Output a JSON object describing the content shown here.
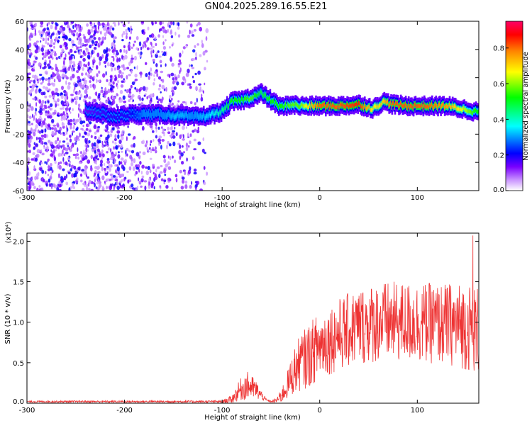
{
  "title": "GN04.2025.289.16.55.E21",
  "chart_data": [
    {
      "type": "heatmap",
      "title": "GN04.2025.289.16.55.E21",
      "xlabel": "Height of straight line (km)",
      "ylabel": "Frequency (Hz)",
      "xlim": [
        -300,
        163
      ],
      "ylim": [
        -60,
        60
      ],
      "xticks": [
        -300,
        -200,
        -100,
        0,
        100
      ],
      "yticks": [
        -60,
        -40,
        -20,
        0,
        20,
        40,
        60
      ],
      "colorbar": {
        "label": "Normalized spectral amplitude",
        "range": [
          0,
          0.95
        ],
        "ticks": [
          0.0,
          0.2,
          0.4,
          0.6,
          0.8
        ],
        "colors": [
          "#ffffff",
          "#cc99ff",
          "#7a00ff",
          "#0000ff",
          "#00ffff",
          "#00ff00",
          "#ffff00",
          "#ff8800",
          "#ff0000",
          "#ff0066"
        ]
      },
      "ridge": {
        "x": [
          -240,
          -225,
          -210,
          -195,
          -180,
          -160,
          -145,
          -130,
          -115,
          -100,
          -90,
          -80,
          -70,
          -60,
          -50,
          -40,
          -30,
          -20,
          -10,
          0,
          20,
          40,
          55,
          65,
          75,
          90,
          110,
          130,
          145,
          160
        ],
        "freq": [
          -3,
          -5,
          -8,
          -6,
          -6,
          -6,
          -7,
          -8,
          -7,
          -4,
          3,
          4,
          6,
          9,
          4,
          -1,
          1,
          0,
          0,
          0,
          0,
          1,
          -2,
          3,
          1,
          0,
          0,
          0,
          -2,
          -4
        ],
        "amplitude": [
          0.15,
          0.18,
          0.2,
          0.2,
          0.3,
          0.3,
          0.35,
          0.3,
          0.35,
          0.45,
          0.55,
          0.55,
          0.6,
          0.5,
          0.55,
          0.55,
          0.6,
          0.6,
          0.75,
          0.85,
          0.85,
          0.9,
          0.7,
          0.75,
          0.85,
          0.85,
          0.85,
          0.8,
          0.7,
          0.55
        ]
      }
    },
    {
      "type": "line",
      "xlabel": "Height of straight line (km)",
      "ylabel": "SNR (10 * v/v)",
      "scale_label": "(x10⁴)",
      "xlim": [
        -300,
        163
      ],
      "ylim": [
        0,
        2.1
      ],
      "xticks": [
        -300,
        -200,
        -100,
        0,
        100
      ],
      "yticks": [
        0.0,
        0.5,
        1.0,
        1.5,
        2.0
      ],
      "series": [
        {
          "name": "SNR",
          "color": "#ee3333",
          "envelope_x": [
            -300,
            -100,
            -90,
            -85,
            -80,
            -75,
            -70,
            -65,
            -60,
            -55,
            -50,
            -45,
            -40,
            -35,
            -30,
            -25,
            -20,
            -10,
            0,
            20,
            40,
            60,
            80,
            100,
            120,
            140,
            150,
            163
          ],
          "envelope_mean": [
            0.02,
            0.02,
            0.05,
            0.12,
            0.18,
            0.22,
            0.2,
            0.16,
            0.1,
            0.04,
            0.02,
            0.03,
            0.08,
            0.18,
            0.3,
            0.42,
            0.5,
            0.6,
            0.72,
            0.85,
            0.95,
            1.0,
            1.0,
            1.0,
            0.98,
            0.97,
            0.95,
            0.9
          ],
          "envelope_noise": [
            0.01,
            0.015,
            0.05,
            0.1,
            0.15,
            0.18,
            0.15,
            0.12,
            0.06,
            0.02,
            0.01,
            0.03,
            0.08,
            0.15,
            0.22,
            0.3,
            0.35,
            0.4,
            0.42,
            0.45,
            0.48,
            0.5,
            0.5,
            0.5,
            0.5,
            0.52,
            0.55,
            0.55
          ],
          "peak_value": 2.07
        }
      ]
    }
  ]
}
